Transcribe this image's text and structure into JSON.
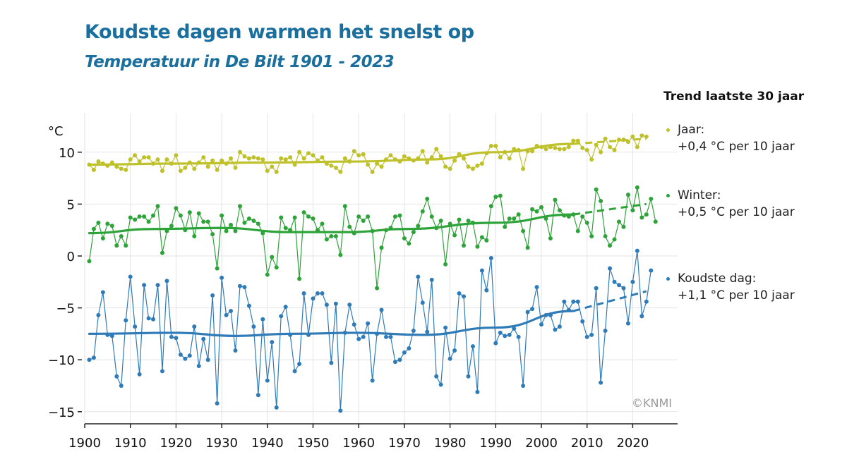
{
  "title": "Koudste dagen warmen het snelst op",
  "subtitle": "Temperatuur in De Bilt 1901 - 2023",
  "credit": "©KNMI",
  "legend": {
    "title": "Trend laatste 30 jaar",
    "items": [
      {
        "name": "Jaar:",
        "trend": "+0,4 °C per 10 jaar",
        "color": "#bfc12a"
      },
      {
        "name": "Winter:",
        "trend": "+0,5 °C per 10 jaar",
        "color": "#2ea33a"
      },
      {
        "name": "Koudste dag:",
        "trend": "+1,1 °C  per 10 jaar",
        "color": "#2f7bb8"
      }
    ]
  },
  "chart_data": {
    "type": "line",
    "title": "Koudste dagen warmen het snelst op",
    "subtitle": "Temperatuur in De Bilt 1901 - 2023",
    "ylabel": "°C",
    "xlabel": "",
    "xlim": [
      1900,
      2029
    ],
    "ylim": [
      -16.5,
      13.5
    ],
    "xticks": [
      1900,
      1910,
      1920,
      1930,
      1940,
      1950,
      1960,
      1970,
      1980,
      1990,
      2000,
      2010,
      2020
    ],
    "yticks": [
      10,
      5,
      0,
      -5,
      -10,
      -15
    ],
    "ytick_labels": [
      "10",
      "5",
      "0",
      "−5",
      "−10",
      "−15"
    ],
    "grid": true,
    "x_start": 1901,
    "series": [
      {
        "name": "Jaar",
        "color": "#bfc12a",
        "values": [
          8.8,
          8.3,
          9.1,
          8.9,
          8.7,
          9.0,
          8.6,
          8.4,
          8.3,
          9.3,
          9.7,
          9.1,
          9.5,
          9.5,
          8.9,
          9.3,
          8.2,
          9.3,
          8.9,
          9.7,
          8.2,
          8.5,
          9.0,
          8.4,
          9.0,
          9.5,
          8.6,
          9.2,
          8.3,
          9.2,
          8.9,
          9.4,
          8.5,
          10.0,
          9.6,
          9.4,
          9.5,
          9.4,
          9.3,
          8.2,
          8.6,
          8.1,
          9.4,
          9.3,
          9.5,
          8.8,
          10.0,
          9.4,
          9.9,
          9.7,
          9.2,
          9.5,
          8.9,
          8.7,
          8.5,
          8.1,
          9.4,
          9.1,
          10.1,
          9.7,
          9.8,
          8.8,
          8.1,
          8.9,
          8.6,
          9.3,
          9.7,
          9.3,
          9.1,
          9.6,
          9.4,
          9.2,
          9.4,
          10.1,
          9.0,
          9.5,
          10.3,
          9.6,
          8.6,
          8.4,
          9.2,
          9.8,
          9.4,
          8.6,
          8.4,
          8.7,
          8.9,
          9.9,
          10.6,
          10.6,
          9.5,
          10.0,
          9.4,
          10.3,
          10.2,
          8.4,
          10.1,
          10.1,
          10.6,
          10.5,
          10.3,
          10.5,
          10.4,
          10.3,
          10.3,
          10.5,
          11.1,
          11.1,
          10.4,
          10.2,
          9.3,
          10.7,
          10.0,
          11.3,
          10.5,
          10.2,
          11.2,
          11.2,
          11.0,
          11.5,
          10.5,
          11.6,
          11.5
        ],
        "trend": {
          "start": 8.8,
          "end_solid_year": 2007,
          "end_solid": 10.8,
          "end": 11.3
        }
      },
      {
        "name": "Winter",
        "color": "#2ea33a",
        "values": [
          -0.5,
          2.6,
          3.2,
          1.7,
          3.1,
          2.9,
          1.0,
          1.9,
          1.0,
          3.7,
          3.5,
          3.8,
          3.8,
          3.3,
          3.9,
          4.8,
          0.3,
          2.4,
          2.9,
          4.6,
          3.9,
          2.5,
          4.2,
          1.9,
          4.1,
          3.3,
          3.3,
          2.1,
          -1.2,
          3.9,
          2.4,
          3.0,
          2.4,
          4.8,
          3.2,
          3.6,
          3.4,
          3.1,
          2.2,
          -1.8,
          -0.1,
          -1.1,
          3.7,
          2.7,
          2.5,
          3.7,
          -2.2,
          4.2,
          3.8,
          3.6,
          2.5,
          3.1,
          1.6,
          1.9,
          1.9,
          0.1,
          4.8,
          2.8,
          2.2,
          3.8,
          3.4,
          3.8,
          2.4,
          -3.1,
          0.8,
          2.5,
          2.7,
          3.8,
          3.9,
          1.7,
          1.2,
          2.3,
          2.9,
          4.3,
          5.5,
          3.8,
          2.7,
          3.4,
          -0.8,
          3.1,
          2.0,
          3.5,
          1.0,
          3.4,
          3.2,
          0.9,
          1.8,
          1.5,
          4.8,
          5.7,
          5.8,
          2.8,
          3.6,
          3.6,
          4.0,
          2.4,
          0.8,
          4.5,
          4.3,
          4.7,
          3.6,
          1.7,
          5.4,
          4.4,
          3.9,
          3.8,
          4.0,
          2.4,
          3.8,
          3.2,
          1.9,
          6.4,
          5.3,
          1.9,
          1.0,
          1.6,
          3.3,
          2.8,
          5.9,
          4.4,
          6.6,
          3.7,
          4.0,
          5.5,
          3.3
        ],
        "trend": {
          "start": 2.2,
          "end_solid_year": 2007,
          "end_solid": 4.0,
          "end": 5.0
        }
      },
      {
        "name": "Koudste dag",
        "color": "#2f7bb8",
        "values": [
          -10.0,
          -9.8,
          -5.7,
          -3.5,
          -7.6,
          -7.7,
          -11.6,
          -12.5,
          -6.2,
          -2.0,
          -6.8,
          -11.4,
          -2.8,
          -6.0,
          -6.1,
          -2.8,
          -11.1,
          -2.4,
          -7.8,
          -7.9,
          -9.5,
          -9.9,
          -9.6,
          -6.8,
          -10.6,
          -8.0,
          -10.0,
          -3.8,
          -14.2,
          -2.1,
          -5.7,
          -5.3,
          -9.1,
          -2.9,
          -3.0,
          -4.8,
          -6.8,
          -13.4,
          -6.1,
          -12.0,
          -8.3,
          -14.6,
          -5.8,
          -4.9,
          -7.6,
          -11.1,
          -10.4,
          -3.6,
          -7.6,
          -4.1,
          -3.6,
          -3.6,
          -4.7,
          -10.3,
          -4.6,
          -14.9,
          -7.4,
          -4.7,
          -6.6,
          -8.0,
          -7.8,
          -6.5,
          -12.0,
          -7.5,
          -5.2,
          -7.8,
          -7.8,
          -10.2,
          -10.0,
          -9.3,
          -8.9,
          -7.2,
          -2.0,
          -4.5,
          -7.3,
          -2.3,
          -11.6,
          -12.4,
          -6.9,
          -9.9,
          -9.1,
          -3.6,
          -3.9,
          -11.6,
          -8.7,
          -13.1,
          -1.4,
          -3.3,
          -0.2,
          -8.4,
          -7.4,
          -7.7,
          -7.6,
          -7.0,
          -7.8,
          -12.5,
          -5.4,
          -5.1,
          -3.0,
          -6.6,
          -5.7,
          -5.7,
          -7.1,
          -6.8,
          -4.4,
          -5.2,
          -4.4,
          -4.4,
          -6.3,
          -7.8,
          -7.6,
          -3.1,
          -12.2,
          -7.2,
          -1.2,
          -2.5,
          -2.8,
          -3.1,
          -6.5,
          -2.5,
          0.5,
          -5.8,
          -4.4,
          -1.4
        ],
        "trend": {
          "start": -7.5,
          "end_solid_year": 2007,
          "end_solid": -5.3,
          "end": -3.4
        }
      }
    ],
    "smooth_trends": {
      "Jaar": [
        [
          1901,
          8.8
        ],
        [
          1920,
          8.9
        ],
        [
          1940,
          9.0
        ],
        [
          1960,
          9.1
        ],
        [
          1975,
          9.3
        ],
        [
          1990,
          10.0
        ],
        [
          2007,
          10.8
        ]
      ],
      "Winter": [
        [
          1901,
          2.2
        ],
        [
          1915,
          2.6
        ],
        [
          1930,
          2.7
        ],
        [
          1945,
          2.3
        ],
        [
          1958,
          2.3
        ],
        [
          1970,
          2.6
        ],
        [
          1990,
          3.2
        ],
        [
          2007,
          4.0
        ]
      ],
      "Koudste dag": [
        [
          1901,
          -7.5
        ],
        [
          1920,
          -7.4
        ],
        [
          1933,
          -7.7
        ],
        [
          1945,
          -7.5
        ],
        [
          1960,
          -7.4
        ],
        [
          1974,
          -7.6
        ],
        [
          1990,
          -6.9
        ],
        [
          2007,
          -5.3
        ]
      ]
    },
    "dashed_trend_range": [
      2007,
      2023
    ],
    "annotations": [
      "©KNMI"
    ]
  }
}
